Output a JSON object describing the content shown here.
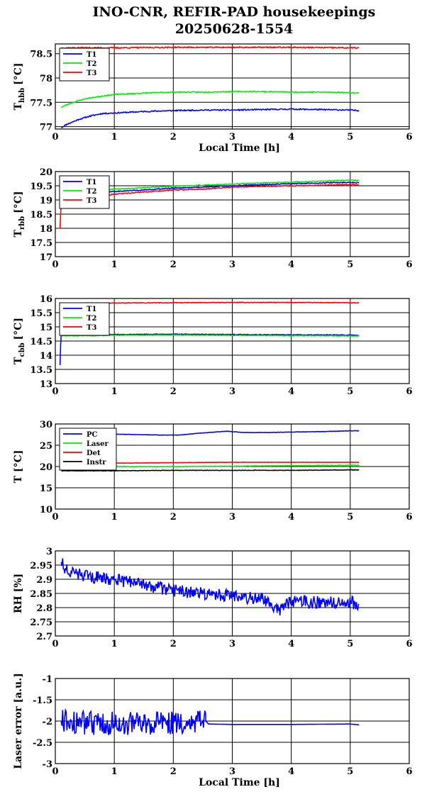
{
  "figure": {
    "title_line1": "INO-CNR, REFIR-PAD housekeepings",
    "title_line2": "20250628-1554"
  },
  "chart_data": [
    {
      "type": "line",
      "ylabel_main": "T",
      "ylabel_sub": "hbb",
      "ylabel_unit": "[°C]",
      "xlabel": "Local Time [h]",
      "xlim": [
        0,
        6
      ],
      "ylim": [
        76.95,
        78.7
      ],
      "yticks": [
        77,
        77.5,
        78,
        78.5
      ],
      "xticks": [
        0,
        1,
        2,
        3,
        4,
        5,
        6
      ],
      "grid": true,
      "legend": "top-left",
      "series": [
        {
          "name": "T1",
          "color": "#0000ff",
          "noise": 0.012,
          "seed": 11,
          "x": [
            0.1,
            0.2,
            0.4,
            0.6,
            0.8,
            1.0,
            1.5,
            2.0,
            2.5,
            3.0,
            3.5,
            4.0,
            4.5,
            5.0,
            5.15
          ],
          "y": [
            76.98,
            77.05,
            77.15,
            77.22,
            77.27,
            77.28,
            77.31,
            77.33,
            77.34,
            77.34,
            77.35,
            77.36,
            77.35,
            77.34,
            77.33
          ]
        },
        {
          "name": "T2",
          "color": "#00ee00",
          "noise": 0.01,
          "seed": 23,
          "x": [
            0.1,
            0.3,
            0.5,
            0.8,
            1.0,
            1.5,
            2.0,
            2.5,
            3.0,
            3.5,
            4.0,
            4.5,
            5.0,
            5.15
          ],
          "y": [
            77.4,
            77.5,
            77.57,
            77.63,
            77.66,
            77.69,
            77.71,
            77.71,
            77.72,
            77.72,
            77.71,
            77.71,
            77.7,
            77.69
          ]
        },
        {
          "name": "T3",
          "color": "#ff0000",
          "noise": 0.012,
          "seed": 37,
          "x": [
            0.1,
            1.0,
            2.0,
            3.0,
            4.0,
            5.0,
            5.15
          ],
          "y": [
            78.62,
            78.62,
            78.63,
            78.63,
            78.63,
            78.62,
            78.62
          ]
        }
      ]
    },
    {
      "type": "line",
      "ylabel_main": "T",
      "ylabel_sub": "rbb",
      "ylabel_unit": "[°C]",
      "xlabel": "",
      "xlim": [
        0,
        6
      ],
      "ylim": [
        17,
        20
      ],
      "yticks": [
        17,
        17.5,
        18,
        18.5,
        19,
        19.5,
        20
      ],
      "xticks": [
        0,
        1,
        2,
        3,
        4,
        5,
        6
      ],
      "grid": true,
      "legend": "top-left",
      "series": [
        {
          "name": "T1",
          "color": "#0000ff",
          "noise": 0.015,
          "seed": 41,
          "x": [
            0.1,
            0.3,
            0.5,
            0.8,
            1.0,
            1.5,
            2.0,
            2.5,
            3.0,
            3.5,
            4.0,
            4.5,
            5.0,
            5.15
          ],
          "y": [
            19.05,
            19.15,
            19.2,
            19.25,
            19.3,
            19.35,
            19.42,
            19.45,
            19.5,
            19.54,
            19.57,
            19.6,
            19.62,
            19.6
          ]
        },
        {
          "name": "T2",
          "color": "#00ee00",
          "noise": 0.015,
          "seed": 53,
          "x": [
            0.1,
            0.3,
            0.5,
            0.8,
            1.0,
            1.5,
            2.0,
            2.5,
            3.0,
            3.5,
            4.0,
            4.5,
            5.0,
            5.15
          ],
          "y": [
            19.15,
            19.25,
            19.3,
            19.35,
            19.38,
            19.43,
            19.48,
            19.52,
            19.56,
            19.6,
            19.63,
            19.66,
            19.7,
            19.68
          ]
        },
        {
          "name": "T3",
          "color": "#ff0000",
          "noise": 0.015,
          "seed": 67,
          "x": [
            0.08,
            0.09,
            0.1,
            0.3,
            0.5,
            0.8,
            1.0,
            1.5,
            2.0,
            2.5,
            3.0,
            3.5,
            4.0,
            4.5,
            5.0,
            5.15
          ],
          "y": [
            18.0,
            18.5,
            19.0,
            19.08,
            19.12,
            19.15,
            19.2,
            19.28,
            19.35,
            19.38,
            19.45,
            19.48,
            19.5,
            19.52,
            19.55,
            19.52
          ]
        }
      ]
    },
    {
      "type": "line",
      "ylabel_main": "T",
      "ylabel_sub": "cbb",
      "ylabel_unit": "[°C]",
      "xlabel": "",
      "xlim": [
        0,
        6
      ],
      "ylim": [
        13,
        16
      ],
      "yticks": [
        13,
        13.5,
        14,
        14.5,
        15,
        15.5,
        16
      ],
      "xticks": [
        0,
        1,
        2,
        3,
        4,
        5,
        6
      ],
      "grid": true,
      "legend": "top-left",
      "series": [
        {
          "name": "T1",
          "color": "#0000ff",
          "noise": 0.012,
          "seed": 71,
          "x": [
            0.08,
            0.09,
            0.1,
            0.5,
            1.0,
            2.0,
            3.0,
            4.0,
            5.0,
            5.15
          ],
          "y": [
            13.65,
            14.4,
            14.72,
            14.72,
            14.73,
            14.74,
            14.73,
            14.72,
            14.71,
            14.7
          ]
        },
        {
          "name": "T2",
          "color": "#00ee00",
          "noise": 0.012,
          "seed": 83,
          "x": [
            0.1,
            0.5,
            1.0,
            2.0,
            3.0,
            4.0,
            5.0,
            5.15
          ],
          "y": [
            14.68,
            14.69,
            14.7,
            14.71,
            14.7,
            14.69,
            14.68,
            14.67
          ]
        },
        {
          "name": "T3",
          "color": "#ff0000",
          "noise": 0.01,
          "seed": 97,
          "x": [
            0.1,
            0.5,
            1.0,
            2.0,
            3.0,
            4.0,
            5.0,
            5.15
          ],
          "y": [
            15.83,
            15.84,
            15.84,
            15.85,
            15.86,
            15.86,
            15.85,
            15.84
          ]
        }
      ]
    },
    {
      "type": "line",
      "ylabel_main": "T [°C]",
      "ylabel_sub": "",
      "ylabel_unit": "",
      "xlabel": "",
      "xlim": [
        0,
        6
      ],
      "ylim": [
        10,
        30
      ],
      "yticks": [
        10,
        15,
        20,
        25,
        30
      ],
      "xticks": [
        0,
        1,
        2,
        3,
        4,
        5,
        6
      ],
      "grid": true,
      "legend": "top-left",
      "series": [
        {
          "name": "PC",
          "color": "#0000ff",
          "noise": 0.04,
          "seed": 101,
          "x": [
            0.1,
            1.0,
            1.8,
            2.1,
            2.5,
            2.9,
            3.2,
            3.6,
            4.0,
            4.5,
            5.0,
            5.15
          ],
          "y": [
            27.6,
            27.6,
            27.4,
            27.4,
            27.9,
            28.3,
            28.0,
            28.0,
            28.1,
            28.2,
            28.4,
            28.4
          ]
        },
        {
          "name": "Laser",
          "color": "#00ee00",
          "noise": 0.05,
          "seed": 113,
          "x": [
            0.1,
            1.0,
            2.0,
            3.0,
            4.0,
            5.0,
            5.15
          ],
          "y": [
            20.0,
            20.0,
            20.0,
            20.1,
            20.2,
            20.3,
            20.3
          ]
        },
        {
          "name": "Det",
          "color": "#ff0000",
          "noise": 0.03,
          "seed": 127,
          "x": [
            0.1,
            1.0,
            2.0,
            3.0,
            4.0,
            5.0,
            5.15
          ],
          "y": [
            20.7,
            20.8,
            20.9,
            21.0,
            21.0,
            21.0,
            21.0
          ]
        },
        {
          "name": "Instr",
          "color": "#000000",
          "noise": 0.05,
          "seed": 131,
          "x": [
            0.1,
            1.0,
            2.0,
            3.0,
            4.0,
            5.0,
            5.15
          ],
          "y": [
            19.0,
            19.0,
            19.1,
            19.1,
            19.1,
            19.2,
            19.2
          ]
        }
      ]
    },
    {
      "type": "line",
      "ylabel_main": "RH [%]",
      "ylabel_sub": "",
      "ylabel_unit": "",
      "xlabel": "",
      "xlim": [
        0,
        6
      ],
      "ylim": [
        2.7,
        3
      ],
      "yticks": [
        2.7,
        2.75,
        2.8,
        2.85,
        2.9,
        2.95,
        3
      ],
      "xticks": [
        0,
        1,
        2,
        3,
        4,
        5,
        6
      ],
      "grid": true,
      "legend": "none",
      "series": [
        {
          "name": "",
          "color": "#0000ff",
          "noise": 0.022,
          "seed": 151,
          "x": [
            0.1,
            0.2,
            0.5,
            1.0,
            1.5,
            2.0,
            2.5,
            3.0,
            3.5,
            3.8,
            4.0,
            4.5,
            5.0,
            5.15
          ],
          "y": [
            2.96,
            2.93,
            2.91,
            2.9,
            2.88,
            2.86,
            2.85,
            2.84,
            2.83,
            2.79,
            2.82,
            2.82,
            2.82,
            2.81
          ]
        }
      ]
    },
    {
      "type": "line",
      "ylabel_main": "Laser error [a.u.]",
      "ylabel_sub": "",
      "ylabel_unit": "",
      "xlabel": "Local Time [h]",
      "xlim": [
        0,
        6
      ],
      "ylim": [
        -3,
        -1
      ],
      "yticks": [
        -3,
        -2.5,
        -2,
        -1.5,
        -1
      ],
      "xticks": [
        0,
        1,
        2,
        3,
        4,
        5,
        6
      ],
      "grid": true,
      "legend": "none",
      "series": [
        {
          "name": "",
          "color": "#0000ff",
          "noise": 0.28,
          "noise_until": 2.55,
          "seed": 173,
          "x": [
            0.1,
            0.5,
            1.0,
            1.5,
            2.0,
            2.5,
            2.55,
            2.6,
            3.0,
            4.0,
            5.0,
            5.15
          ],
          "y": [
            -2.0,
            -2.05,
            -2.05,
            -2.05,
            -2.05,
            -2.0,
            -2.0,
            -2.07,
            -2.08,
            -2.08,
            -2.07,
            -2.09
          ]
        }
      ]
    }
  ]
}
